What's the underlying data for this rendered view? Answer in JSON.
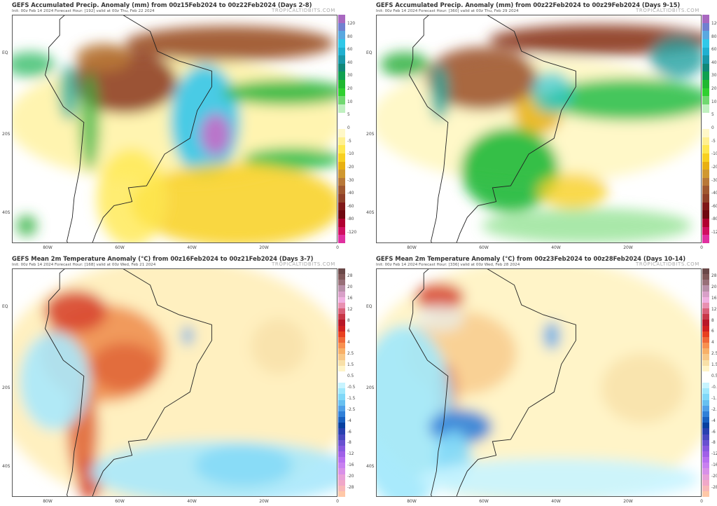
{
  "brand": "TROPICALTIDBITS.COM",
  "lat_labels": [
    "EQ",
    "20S",
    "40S"
  ],
  "lon_labels": [
    "80W",
    "60W",
    "40W",
    "20W",
    "0"
  ],
  "precip_scale": {
    "labels": [
      "120",
      "80",
      "60",
      "40",
      "30",
      "20",
      "10",
      "5",
      "0",
      "-5",
      "-10",
      "-20",
      "-30",
      "-40",
      "-60",
      "-80",
      "-120"
    ],
    "colors": [
      "#a868c0",
      "#7080d0",
      "#5aa8e0",
      "#30c8e8",
      "#20b0d0",
      "#1898a8",
      "#108878",
      "#10a050",
      "#20b830",
      "#30d030",
      "#70d870",
      "#c0f0c0",
      "#ffffff",
      "#ffffff",
      "#fff8c8",
      "#fff090",
      "#ffe850",
      "#f8d020",
      "#e8b010",
      "#d09830",
      "#b87838",
      "#a05830",
      "#904028",
      "#801818",
      "#700810",
      "#b00030",
      "#d01060",
      "#e030a0"
    ]
  },
  "temp_scale": {
    "labels": [
      "28",
      "20",
      "16",
      "12",
      "8",
      "6",
      "4",
      "2.5",
      "1.5",
      "0.5",
      "-0.5",
      "-1.5",
      "-2.5",
      "-4",
      "-6",
      "-8",
      "-12",
      "-16",
      "-20",
      "-28"
    ],
    "colors": [
      "#6a4848",
      "#805858",
      "#987078",
      "#b890a8",
      "#d8a0c8",
      "#f0b0e0",
      "#e890b0",
      "#d86078",
      "#c83848",
      "#b81828",
      "#d02020",
      "#e84020",
      "#f06838",
      "#f89050",
      "#f8b068",
      "#f8c888",
      "#f8e0a8",
      "#fff4c8",
      "#ffffff",
      "#ffffff",
      "#c8f4ff",
      "#a0e8fc",
      "#80d8f8",
      "#68c0f0",
      "#50a0e8",
      "#3080d8",
      "#1860c0",
      "#0840a0",
      "#2840b0",
      "#4848c0",
      "#6850d0",
      "#8858e0",
      "#a060e8",
      "#b870f0",
      "#c880f0",
      "#d890e8",
      "#e8a0d8",
      "#f0a8c8",
      "#f8b8b8",
      "#ffc8a8"
    ]
  },
  "panels": [
    {
      "title": "GEFS Accumulated Precip. Anomaly (mm) from 00z15Feb2024 to 00z22Feb2024 (Days 2-8)",
      "subtitle": "Init: 00z Feb 14 2024   Forecast Hour: [192]   valid at 00z Thu, Feb 22 2024",
      "scale": "precip"
    },
    {
      "title": "GEFS Accumulated Precip. Anomaly (mm) from 00z22Feb2024 to 00z29Feb2024 (Days 9-15)",
      "subtitle": "Init: 00z Feb 14 2024   Forecast Hour: [360]   valid at 00z Thu, Feb 29 2024",
      "scale": "precip"
    },
    {
      "title": "GEFS Mean 2m Temperature Anomaly (°C) from 00z16Feb2024 to 00z21Feb2024 (Days 3-7)",
      "subtitle": "Init: 00z Feb 14 2024   Forecast Hour: [168]   valid at 00z Wed, Feb 21 2024",
      "scale": "temp"
    },
    {
      "title": "GEFS Mean 2m Temperature Anomaly (°C) from 00z23Feb2024 to 00z28Feb2024 (Days 10-14)",
      "subtitle": "Init: 00z Feb 14 2024   Forecast Hour: [336]   valid at 00z Wed, Feb 28 2024",
      "scale": "temp"
    }
  ]
}
